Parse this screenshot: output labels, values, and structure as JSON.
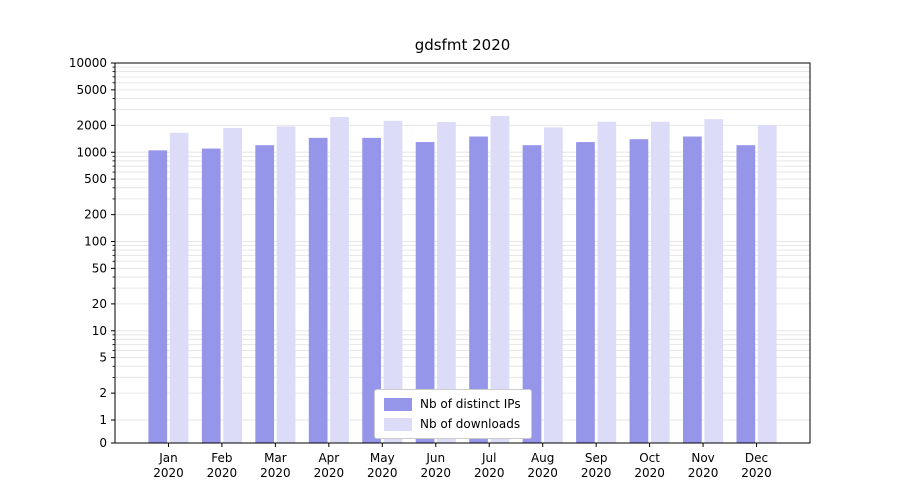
{
  "chart_data": {
    "type": "bar",
    "title": "gdsfmt 2020",
    "year_label": "2020",
    "categories": [
      "Jan",
      "Feb",
      "Mar",
      "Apr",
      "May",
      "Jun",
      "Jul",
      "Aug",
      "Sep",
      "Oct",
      "Nov",
      "Dec"
    ],
    "series": [
      {
        "name": "Nb of distinct IPs",
        "color": "#9595ea",
        "values": [
          1050,
          1100,
          1200,
          1450,
          1450,
          1300,
          1500,
          1200,
          1300,
          1400,
          1500,
          1200
        ]
      },
      {
        "name": "Nb of downloads",
        "color": "#dcdcf8",
        "values": [
          1650,
          1870,
          1950,
          2480,
          2250,
          2180,
          2550,
          1900,
          2200,
          2200,
          2350,
          2020
        ]
      }
    ],
    "y_ticks": [
      0,
      1,
      2,
      5,
      10,
      20,
      50,
      100,
      200,
      500,
      1000,
      2000,
      5000,
      10000
    ],
    "y_scale": "symlog",
    "ylim": [
      0,
      10000
    ],
    "grid": "on",
    "legend_position": "lower center",
    "colors": {
      "grid": "#e6e6e6",
      "axis": "#000000",
      "background": "#ffffff"
    }
  }
}
